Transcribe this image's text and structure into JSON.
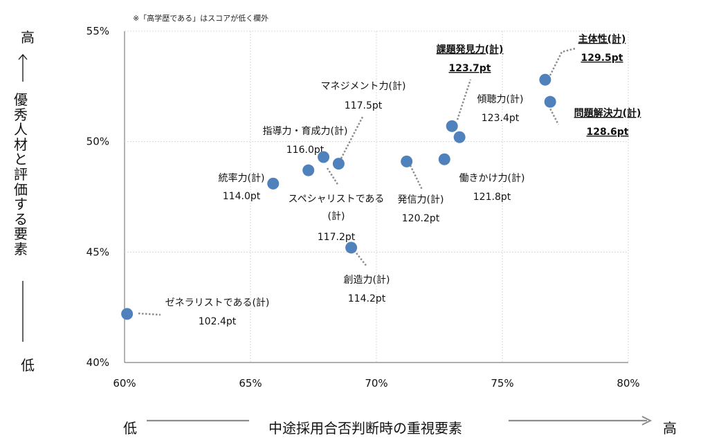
{
  "note": "※「高学歴である」はスコアが低く欄外",
  "y_axis": {
    "label": "優秀人材と評価する要素",
    "high": "高",
    "low": "低"
  },
  "x_axis": {
    "label": "中途採用合否判断時の重視要素",
    "high": "高",
    "low": "低"
  },
  "colors": {
    "marker": "#4f81bd",
    "grid": "#d9d9d9",
    "axis": "#7f7f7f",
    "leader": "#8c8c8c",
    "arrow": "#8c8c8c"
  },
  "chart_data": {
    "type": "scatter",
    "xlabel": "中途採用合否判断時の重視要素",
    "ylabel": "優秀人材と評価する要素",
    "xlim": [
      0.6,
      0.8
    ],
    "ylim": [
      0.4,
      0.55
    ],
    "x_ticks": [
      "60%",
      "65%",
      "70%",
      "75%",
      "80%"
    ],
    "y_ticks": [
      "40%",
      "45%",
      "50%",
      "55%"
    ],
    "grid": true,
    "points": [
      {
        "name": "ゼネラリストである(計)",
        "score": "102.4pt",
        "x": 0.601,
        "y": 0.422
      },
      {
        "name": "統率力(計)",
        "score": "114.0pt",
        "x": 0.659,
        "y": 0.481
      },
      {
        "name": "指導力・育成力(計)",
        "score": "116.0pt",
        "x": 0.673,
        "y": 0.487
      },
      {
        "name": "スペシャリストである(計)",
        "score": "117.2pt",
        "x": 0.679,
        "y": 0.493
      },
      {
        "name": "マネジメント力(計)",
        "score": "117.5pt",
        "x": 0.685,
        "y": 0.49
      },
      {
        "name": "創造力(計)",
        "score": "114.2pt",
        "x": 0.69,
        "y": 0.452
      },
      {
        "name": "発信力(計)",
        "score": "120.2pt",
        "x": 0.712,
        "y": 0.491
      },
      {
        "name": "働きかけ力(計)",
        "score": "121.8pt",
        "x": 0.727,
        "y": 0.492
      },
      {
        "name": "課題発見力(計)",
        "score": "123.7pt",
        "x": 0.73,
        "y": 0.507
      },
      {
        "name": "傾聴力(計)",
        "score": "123.4pt",
        "x": 0.733,
        "y": 0.502
      },
      {
        "name": "主体性(計)",
        "score": "129.5pt",
        "x": 0.767,
        "y": 0.528
      },
      {
        "name": "問題解決力(計)",
        "score": "128.6pt",
        "x": 0.769,
        "y": 0.518
      }
    ]
  }
}
